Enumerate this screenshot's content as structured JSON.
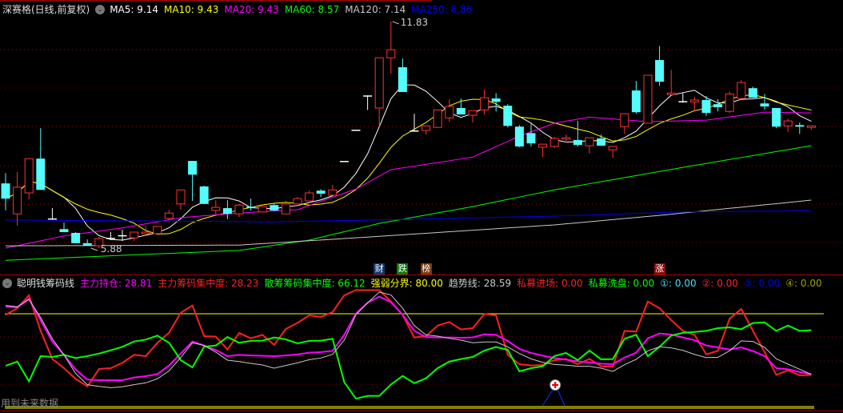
{
  "main_header": {
    "title": "深赛格(日线,前复权)",
    "ma_labels": [
      {
        "label": "MA5: 9.14",
        "color": "#ffffff"
      },
      {
        "label": "MA10: 9.43",
        "color": "#ffff00"
      },
      {
        "label": "MA20: 9.43",
        "color": "#ff00ff"
      },
      {
        "label": "MA60: 8.57",
        "color": "#00ff00"
      },
      {
        "label": "MA120: 7.14",
        "color": "#c8c8c8"
      },
      {
        "label": "MA250: 6.86",
        "color": "#0000ff"
      }
    ]
  },
  "indicator_header": {
    "title": "聪明钱筹码线",
    "items": [
      {
        "label": "主力持仓: 28.81",
        "color": "#ff00ff"
      },
      {
        "label": "主力筹码集中度: 28.23",
        "color": "#ff2020"
      },
      {
        "label": "散筹筹码集中度: 66.12",
        "color": "#00ff00"
      },
      {
        "label": "强弱分界: 80.00",
        "color": "#ffff00"
      },
      {
        "label": "趋势线: 28.59",
        "color": "#c8c8c8"
      },
      {
        "label": "私募进场: 0.00",
        "color": "#ff2020"
      },
      {
        "label": "私募洗盘: 0.00",
        "color": "#00ff00"
      },
      {
        "label": "①: 0.00",
        "color": "#40e0f0"
      },
      {
        "label": "②: 0.00",
        "color": "#ff2020"
      },
      {
        "label": "③: 0.00",
        "color": "#0000ff"
      },
      {
        "label": "④: 0.00",
        "color": "#a0a000"
      }
    ]
  },
  "tags": [
    {
      "text": "财",
      "bar": 32,
      "color": "#0f3a70"
    },
    {
      "text": "跌",
      "bar": 34,
      "color": "#0a7a0a"
    },
    {
      "text": "榜",
      "bar": 36,
      "color": "#7a3a08"
    },
    {
      "text": "涨",
      "bar": 56,
      "color": "#8a0a0a"
    }
  ],
  "future_note": "用到未来数据",
  "chart_data": [
    {
      "type": "candlestick",
      "high_label": "11.83",
      "low_label": "5.88",
      "colors": {
        "up": "#ff3232",
        "down": "#54fcfc",
        "flat": "#ffffff"
      },
      "ohlc": [
        [
          7.58,
          7.85,
          6.87,
          7.18
        ],
        [
          6.78,
          7.88,
          6.47,
          7.48
        ],
        [
          7.33,
          8.23,
          7.16,
          8.23
        ],
        [
          8.23,
          9.03,
          7.41,
          7.41
        ],
        [
          6.66,
          6.93,
          6.66,
          6.66
        ],
        [
          6.38,
          6.55,
          6.3,
          6.3
        ],
        [
          6.28,
          6.3,
          6.01,
          6.01
        ],
        [
          6.01,
          6.11,
          5.94,
          5.94
        ],
        [
          5.94,
          6.17,
          5.88,
          6.13
        ],
        [
          6.15,
          6.3,
          6.09,
          6.15
        ],
        [
          6.22,
          6.36,
          6.07,
          6.22
        ],
        [
          6.15,
          6.3,
          6.07,
          6.3
        ],
        [
          6.26,
          6.45,
          6.26,
          6.3
        ],
        [
          6.26,
          6.45,
          6.26,
          6.45
        ],
        [
          6.66,
          6.89,
          6.62,
          6.8
        ],
        [
          7.04,
          7.41,
          6.89,
          7.41
        ],
        [
          8.17,
          8.17,
          7.12,
          7.81
        ],
        [
          7.5,
          7.52,
          7.04,
          7.04
        ],
        [
          6.87,
          7.14,
          6.74,
          6.95
        ],
        [
          6.93,
          7.14,
          6.64,
          6.78
        ],
        [
          6.78,
          7.04,
          6.7,
          7.01
        ],
        [
          6.97,
          7.18,
          6.87,
          6.93
        ],
        [
          6.83,
          6.97,
          6.83,
          6.97
        ],
        [
          7.01,
          7.06,
          6.85,
          6.87
        ],
        [
          6.78,
          7.12,
          6.78,
          7.04
        ],
        [
          7.04,
          7.22,
          7.04,
          7.18
        ],
        [
          7.12,
          7.39,
          7.12,
          7.33
        ],
        [
          7.39,
          7.43,
          7.22,
          7.31
        ],
        [
          7.27,
          7.54,
          7.27,
          7.41
        ],
        [
          8.17,
          8.17,
          8.17,
          8.17
        ],
        [
          8.99,
          8.99,
          8.99,
          8.99
        ],
        [
          9.89,
          9.89,
          9.51,
          9.89
        ],
        [
          9.56,
          10.88,
          9.07,
          10.88
        ],
        [
          10.88,
          11.83,
          10.46,
          11.09
        ],
        [
          10.63,
          10.86,
          9.98,
          9.98
        ],
        [
          8.97,
          9.41,
          8.97,
          8.97
        ],
        [
          8.97,
          9.09,
          8.86,
          9.09
        ],
        [
          9.05,
          9.51,
          9.05,
          9.51
        ],
        [
          9.3,
          9.79,
          9.2,
          9.6
        ],
        [
          9.56,
          9.81,
          9.39,
          9.39
        ],
        [
          9.37,
          9.49,
          9.18,
          9.49
        ],
        [
          9.51,
          10.04,
          9.39,
          9.83
        ],
        [
          9.81,
          9.95,
          9.47,
          9.72
        ],
        [
          9.62,
          9.66,
          9.05,
          9.09
        ],
        [
          9.07,
          9.11,
          8.53,
          8.55
        ],
        [
          8.9,
          9.14,
          8.55,
          8.63
        ],
        [
          8.53,
          8.61,
          8.27,
          8.61
        ],
        [
          8.55,
          8.8,
          8.51,
          8.76
        ],
        [
          8.74,
          8.86,
          8.65,
          8.78
        ],
        [
          8.72,
          9.22,
          8.55,
          8.59
        ],
        [
          8.57,
          8.78,
          8.36,
          8.78
        ],
        [
          8.76,
          8.86,
          8.57,
          8.57
        ],
        [
          8.46,
          8.55,
          8.25,
          8.55
        ],
        [
          9.07,
          9.41,
          8.88,
          9.41
        ],
        [
          10.02,
          10.27,
          9.41,
          9.45
        ],
        [
          9.16,
          10.42,
          9.16,
          10.42
        ],
        [
          10.82,
          11.19,
          10.14,
          10.25
        ],
        [
          9.91,
          10.56,
          9.91,
          9.95
        ],
        [
          9.74,
          9.95,
          9.7,
          9.74
        ],
        [
          9.72,
          9.85,
          9.49,
          9.77
        ],
        [
          9.77,
          9.87,
          9.35,
          9.43
        ],
        [
          9.66,
          9.79,
          9.47,
          9.58
        ],
        [
          9.47,
          9.99,
          9.43,
          9.93
        ],
        [
          9.81,
          10.29,
          9.81,
          10.23
        ],
        [
          10.08,
          10.12,
          9.83,
          9.83
        ],
        [
          9.68,
          9.93,
          9.51,
          9.6
        ],
        [
          9.56,
          9.56,
          9.03,
          9.07
        ],
        [
          9.09,
          9.28,
          8.93,
          9.22
        ],
        [
          9.11,
          9.18,
          8.88,
          9.07
        ],
        [
          9.05,
          9.09,
          8.99,
          9.09
        ]
      ],
      "moving_averages": [
        {
          "name": "MA5",
          "period": 5,
          "color": "#ffffff"
        },
        {
          "name": "MA10",
          "period": 10,
          "color": "#ffff00"
        },
        {
          "name": "MA20",
          "color": "#ff00ff",
          "points": [
            [
              0,
              5.88
            ],
            [
              5,
              6.2
            ],
            [
              10,
              6.41
            ],
            [
              15,
              6.68
            ],
            [
              20,
              6.8
            ],
            [
              25,
              6.89
            ],
            [
              30,
              7.43
            ],
            [
              33,
              7.94
            ],
            [
              36,
              8.08
            ],
            [
              40,
              8.27
            ],
            [
              44,
              8.82
            ],
            [
              47,
              9.16
            ],
            [
              50,
              9.32
            ],
            [
              55,
              9.2
            ],
            [
              60,
              9.24
            ],
            [
              65,
              9.45
            ],
            [
              69,
              9.43
            ]
          ]
        },
        {
          "name": "MA60",
          "color": "#00ff00",
          "points": [
            [
              0,
              5.56
            ],
            [
              10,
              5.69
            ],
            [
              20,
              5.82
            ],
            [
              26,
              6.09
            ],
            [
              32,
              6.53
            ],
            [
              40,
              6.97
            ],
            [
              47,
              7.41
            ],
            [
              58,
              8.0
            ],
            [
              69,
              8.57
            ]
          ]
        },
        {
          "name": "MA120",
          "color": "#c8c8c8",
          "points": [
            [
              0,
              5.94
            ],
            [
              20,
              5.96
            ],
            [
              30,
              6.15
            ],
            [
              47,
              6.49
            ],
            [
              56,
              6.74
            ],
            [
              69,
              7.14
            ]
          ]
        },
        {
          "name": "MA250",
          "color": "#0000ff",
          "points": [
            [
              0,
              6.62
            ],
            [
              23,
              6.57
            ],
            [
              32,
              6.62
            ],
            [
              47,
              6.72
            ],
            [
              58,
              6.83
            ],
            [
              69,
              6.86
            ]
          ]
        }
      ]
    },
    {
      "type": "line",
      "ylim": [
        0,
        100
      ],
      "threshold": {
        "name": "强弱分界",
        "value": 80,
        "color": "#ffff00"
      },
      "series": [
        {
          "name": "主力筹码集中度",
          "color": "#ff2020",
          "values": [
            79.1,
            84.7,
            95.6,
            65.5,
            41.8,
            33.9,
            24.9,
            18.5,
            33.2,
            33.9,
            38.4,
            45.2,
            44.1,
            55.4,
            64,
            80.9,
            87,
            61,
            60.6,
            49.7,
            63.7,
            59.2,
            62.1,
            53.6,
            67.1,
            72.3,
            78.6,
            77.3,
            81.4,
            95.6,
            100,
            100,
            100,
            90.4,
            79.1,
            59.9,
            61,
            70,
            73,
            66.7,
            67.8,
            79.8,
            78.6,
            45.2,
            37.3,
            36.2,
            36.6,
            40.7,
            41.8,
            37.3,
            41.8,
            35.5,
            35.1,
            65.5,
            64.9,
            90.4,
            84.7,
            74.6,
            65.5,
            62.1,
            45.6,
            48.6,
            75.7,
            84.1,
            65.5,
            47.5,
            28.2,
            32.1,
            27.8,
            28.23
          ]
        },
        {
          "name": "主力持仓",
          "color": "#ff00ff",
          "values": [
            85.9,
            85.4,
            92.6,
            74.6,
            56.5,
            45.2,
            32.8,
            24.2,
            23.7,
            23.7,
            23.7,
            26,
            27.1,
            28.9,
            36.2,
            46.3,
            56.5,
            53.1,
            49.3,
            44.1,
            45.2,
            44.7,
            44.4,
            44.1,
            44.7,
            45.6,
            47,
            47.5,
            48.6,
            62.1,
            80.2,
            89.3,
            94.5,
            89.9,
            79.1,
            65.5,
            60.3,
            59.9,
            59.9,
            59.7,
            59.9,
            62.6,
            62.1,
            57,
            50.2,
            46.8,
            44.5,
            42.5,
            41.1,
            39.7,
            38.8,
            37.7,
            37.3,
            42.9,
            47,
            59.2,
            63.3,
            62.4,
            59.9,
            57.6,
            53.1,
            51.5,
            49.7,
            51.5,
            48.4,
            44.1,
            33.9,
            33,
            30.7,
            28.81
          ]
        },
        {
          "name": "散筹筹码集中度",
          "color": "#00ff00",
          "values": [
            35.9,
            39.5,
            22.8,
            44.1,
            43.4,
            45.2,
            42.5,
            44.1,
            46.3,
            49,
            52,
            56.5,
            58.1,
            61.5,
            55.4,
            40.7,
            34.6,
            52,
            53.1,
            60.3,
            55.4,
            57,
            57.2,
            59.9,
            58.3,
            54.9,
            57,
            57.2,
            58.8,
            22.1,
            8.1,
            10.4,
            10.4,
            20.1,
            27.3,
            21.2,
            25.3,
            33.9,
            39.5,
            41.6,
            43.4,
            48.8,
            51.8,
            49.5,
            31.2,
            33.9,
            35.5,
            44.1,
            46.8,
            40.7,
            48.8,
            41.4,
            41.6,
            58.8,
            62.2,
            44.1,
            52,
            61.5,
            63.8,
            64.6,
            65.5,
            67.8,
            68.5,
            66.9,
            72.1,
            72.7,
            65.5,
            70,
            65.5,
            66.12
          ]
        },
        {
          "name": "趋势线",
          "color": "#c8c8c8",
          "values": [
            87,
            85.9,
            92.2,
            76.8,
            58.8,
            45.2,
            29.4,
            19.9,
            18.5,
            17.4,
            18.1,
            19.9,
            21.5,
            24.9,
            31.6,
            42.9,
            55.4,
            53.1,
            47.5,
            40.7,
            39.5,
            38,
            36.6,
            33.9,
            36.2,
            38.4,
            41.1,
            42.5,
            45.6,
            57.6,
            79.1,
            89.3,
            98.3,
            96,
            84.7,
            70,
            62.1,
            61,
            59.2,
            57.6,
            55.4,
            56.1,
            56.1,
            52,
            46.3,
            41.8,
            38.8,
            37,
            36.4,
            35.5,
            35.5,
            33.9,
            31.2,
            36.8,
            41.4,
            48.6,
            52,
            51.1,
            49,
            45.6,
            42.9,
            43.1,
            48.6,
            57,
            56.5,
            51.5,
            41.8,
            37.3,
            33,
            28.59
          ]
        }
      ],
      "signal_marker": {
        "bar": 47,
        "icon": "plus-circle-icon"
      }
    }
  ]
}
